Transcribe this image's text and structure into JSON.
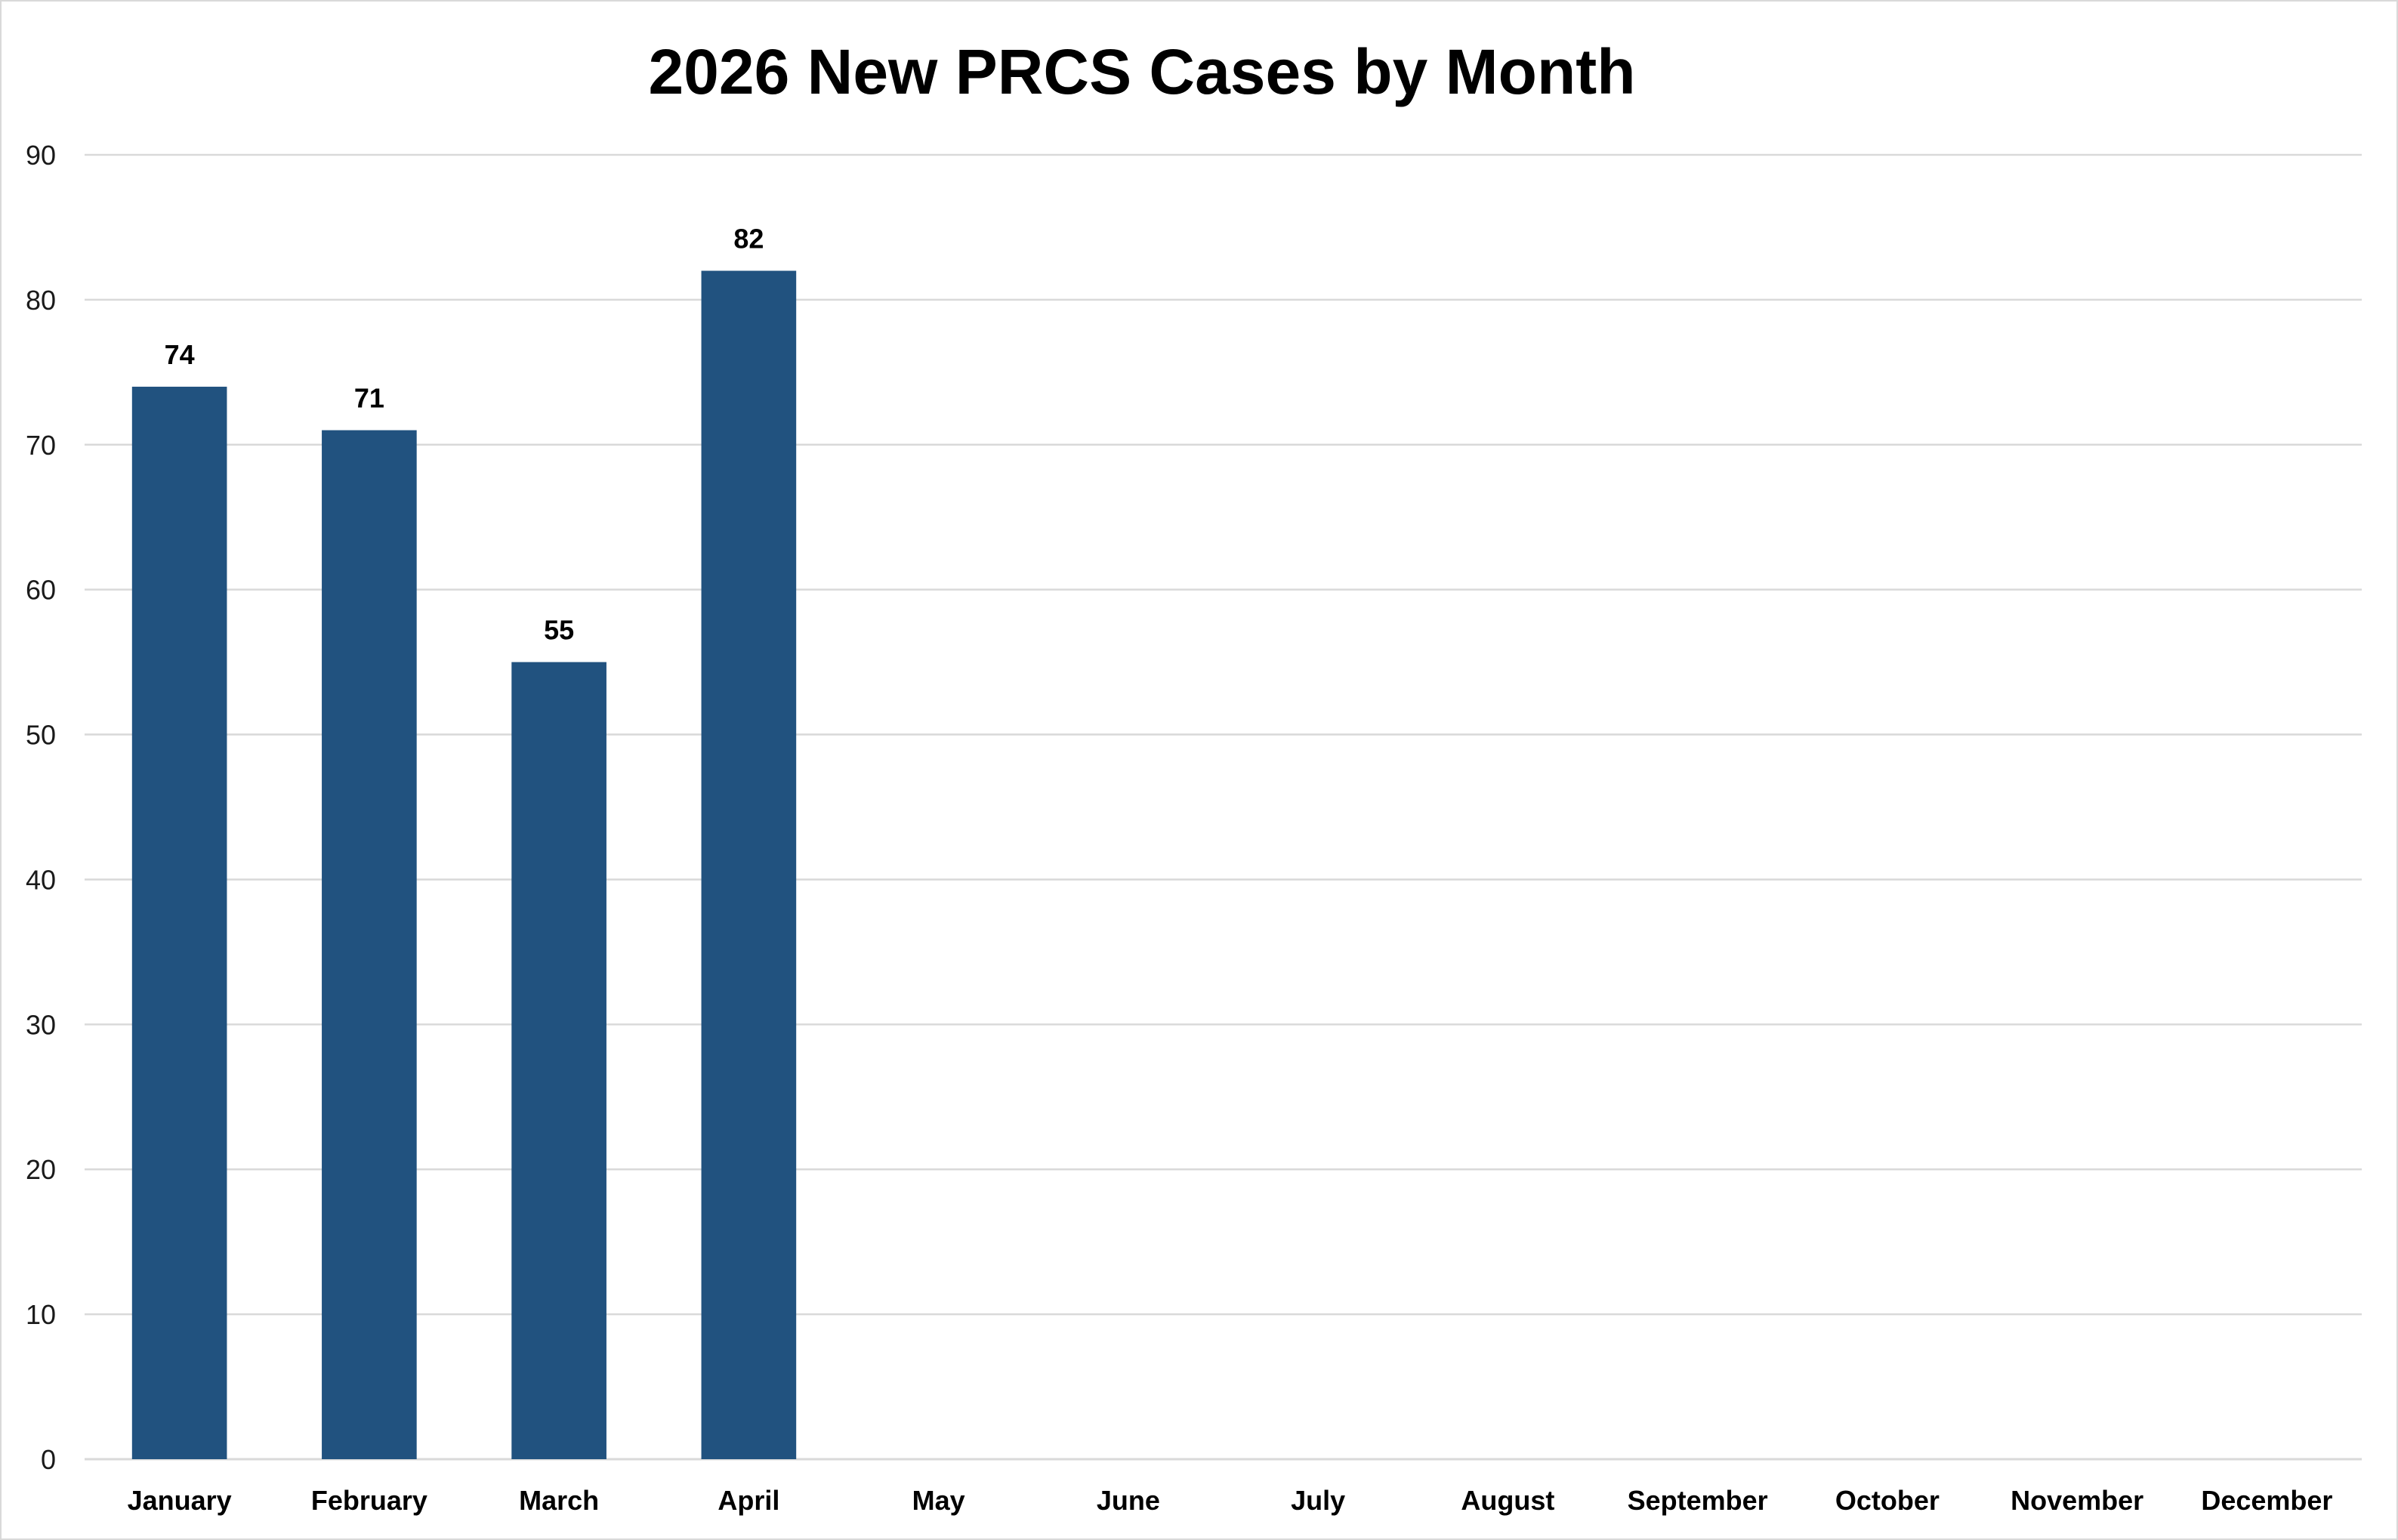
{
  "chart_data": {
    "type": "bar",
    "title": "2026 New PRCS Cases by Month",
    "xlabel": "",
    "ylabel": "",
    "ylim": [
      0,
      90
    ],
    "ytick_step": 10,
    "grid": true,
    "legend": "none",
    "bar_color": "#21527F",
    "categories": [
      "January",
      "February",
      "March",
      "April",
      "May",
      "June",
      "July",
      "August",
      "September",
      "October",
      "November",
      "December"
    ],
    "values": [
      74,
      71,
      55,
      82,
      null,
      null,
      null,
      null,
      null,
      null,
      null,
      null
    ]
  }
}
